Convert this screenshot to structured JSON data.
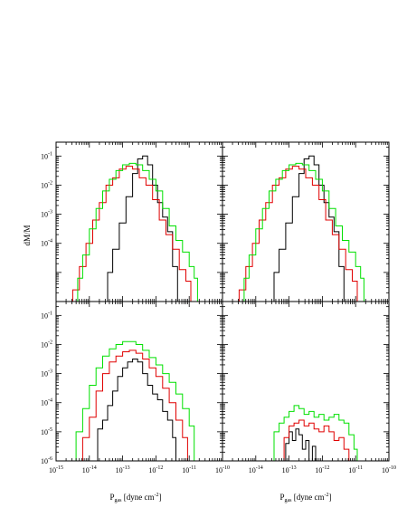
{
  "chart_data": {
    "type": "line",
    "layout": "2x2 panel grid of step histograms",
    "xscale": "log",
    "yscale": "log",
    "xlim": [
      1e-15,
      1e-10
    ],
    "ylabel": "dM/M",
    "xlabel_main": "P",
    "xlabel_sub": "gas",
    "xlabel_unit": "[dyne cm",
    "xlabel_exp": "-2",
    "xlabel_close": "]",
    "x_ticks_major": [
      -15,
      -14,
      -13,
      -12,
      -11,
      -10
    ],
    "x_tick_base": "10",
    "series_colors": [
      "#000000",
      "#e00000",
      "#00e000"
    ],
    "panels": [
      {
        "position": "top-left",
        "ylim": [
          1e-06,
          0.3
        ],
        "y_ticks_shown": [
          -4,
          -3,
          -2,
          -1
        ],
        "series": [
          {
            "color": "#000000",
            "points": [
              [
                -13.55,
                -6.5
              ],
              [
                -13.45,
                -5.0
              ],
              [
                -13.3,
                -4.2
              ],
              [
                -13.1,
                -3.3
              ],
              [
                -12.9,
                -2.4
              ],
              [
                -12.7,
                -1.6
              ],
              [
                -12.55,
                -1.1
              ],
              [
                -12.4,
                -1.0
              ],
              [
                -12.25,
                -1.3
              ],
              [
                -12.1,
                -2.0
              ],
              [
                -11.95,
                -2.6
              ],
              [
                -11.8,
                -3.1
              ],
              [
                -11.65,
                -3.6
              ],
              [
                -11.5,
                -4.8
              ],
              [
                -11.35,
                -6.5
              ]
            ]
          },
          {
            "color": "#e00000",
            "points": [
              [
                -14.65,
                -6.5
              ],
              [
                -14.5,
                -5.6
              ],
              [
                -14.3,
                -4.8
              ],
              [
                -14.1,
                -4.0
              ],
              [
                -13.9,
                -3.2
              ],
              [
                -13.7,
                -2.6
              ],
              [
                -13.5,
                -2.0
              ],
              [
                -13.3,
                -1.75
              ],
              [
                -13.1,
                -1.45
              ],
              [
                -12.9,
                -1.35
              ],
              [
                -12.7,
                -1.45
              ],
              [
                -12.5,
                -1.75
              ],
              [
                -12.3,
                -2.0
              ],
              [
                -12.1,
                -2.5
              ],
              [
                -11.9,
                -3.2
              ],
              [
                -11.7,
                -3.7
              ],
              [
                -11.5,
                -4.2
              ],
              [
                -11.3,
                -4.9
              ],
              [
                -11.1,
                -5.3
              ],
              [
                -10.95,
                -6.5
              ]
            ]
          },
          {
            "color": "#00e000",
            "points": [
              [
                -14.45,
                -6.5
              ],
              [
                -14.35,
                -5.2
              ],
              [
                -14.2,
                -4.4
              ],
              [
                -14.0,
                -3.5
              ],
              [
                -13.8,
                -2.8
              ],
              [
                -13.6,
                -2.2
              ],
              [
                -13.4,
                -1.8
              ],
              [
                -13.2,
                -1.5
              ],
              [
                -13.0,
                -1.3
              ],
              [
                -12.8,
                -1.25
              ],
              [
                -12.6,
                -1.3
              ],
              [
                -12.4,
                -1.5
              ],
              [
                -12.2,
                -1.8
              ],
              [
                -12.0,
                -2.2
              ],
              [
                -11.8,
                -2.8
              ],
              [
                -11.6,
                -3.4
              ],
              [
                -11.4,
                -3.9
              ],
              [
                -11.2,
                -4.3
              ],
              [
                -11.0,
                -4.8
              ],
              [
                -10.85,
                -5.2
              ],
              [
                -10.75,
                -6.5
              ]
            ]
          }
        ]
      },
      {
        "position": "top-right",
        "ylim": [
          1e-06,
          0.3
        ],
        "y_ticks_shown": [],
        "series": [
          {
            "color": "#000000",
            "points": [
              [
                -13.55,
                -6.5
              ],
              [
                -13.45,
                -5.0
              ],
              [
                -13.3,
                -4.2
              ],
              [
                -13.1,
                -3.3
              ],
              [
                -12.9,
                -2.4
              ],
              [
                -12.7,
                -1.6
              ],
              [
                -12.55,
                -1.1
              ],
              [
                -12.4,
                -1.0
              ],
              [
                -12.25,
                -1.3
              ],
              [
                -12.1,
                -2.0
              ],
              [
                -11.95,
                -2.6
              ],
              [
                -11.8,
                -3.1
              ],
              [
                -11.65,
                -3.6
              ],
              [
                -11.5,
                -4.8
              ],
              [
                -11.35,
                -6.5
              ]
            ]
          },
          {
            "color": "#e00000",
            "points": [
              [
                -14.65,
                -6.5
              ],
              [
                -14.5,
                -5.6
              ],
              [
                -14.3,
                -4.8
              ],
              [
                -14.1,
                -4.0
              ],
              [
                -13.9,
                -3.2
              ],
              [
                -13.7,
                -2.6
              ],
              [
                -13.5,
                -2.0
              ],
              [
                -13.3,
                -1.75
              ],
              [
                -13.1,
                -1.45
              ],
              [
                -12.9,
                -1.35
              ],
              [
                -12.7,
                -1.45
              ],
              [
                -12.5,
                -1.75
              ],
              [
                -12.3,
                -2.0
              ],
              [
                -12.1,
                -2.5
              ],
              [
                -11.9,
                -3.2
              ],
              [
                -11.7,
                -3.7
              ],
              [
                -11.5,
                -4.2
              ],
              [
                -11.3,
                -4.9
              ],
              [
                -11.1,
                -5.3
              ],
              [
                -10.95,
                -6.5
              ]
            ]
          },
          {
            "color": "#00e000",
            "points": [
              [
                -14.45,
                -6.5
              ],
              [
                -14.35,
                -5.2
              ],
              [
                -14.2,
                -4.4
              ],
              [
                -14.0,
                -3.5
              ],
              [
                -13.8,
                -2.8
              ],
              [
                -13.6,
                -2.2
              ],
              [
                -13.4,
                -1.8
              ],
              [
                -13.2,
                -1.5
              ],
              [
                -13.0,
                -1.3
              ],
              [
                -12.8,
                -1.25
              ],
              [
                -12.6,
                -1.3
              ],
              [
                -12.4,
                -1.5
              ],
              [
                -12.2,
                -1.8
              ],
              [
                -12.0,
                -2.2
              ],
              [
                -11.8,
                -2.8
              ],
              [
                -11.6,
                -3.4
              ],
              [
                -11.4,
                -3.9
              ],
              [
                -11.2,
                -4.3
              ],
              [
                -11.0,
                -4.8
              ],
              [
                -10.85,
                -5.2
              ],
              [
                -10.75,
                -6.5
              ]
            ]
          }
        ]
      },
      {
        "position": "bottom-left",
        "ylim": [
          1e-06,
          0.3
        ],
        "y_ticks_shown": [
          -6,
          -5,
          -4,
          -3,
          -2,
          -1
        ],
        "series": [
          {
            "color": "#000000",
            "points": [
              [
                -13.85,
                -6.0
              ],
              [
                -13.75,
                -4.9
              ],
              [
                -13.6,
                -4.6
              ],
              [
                -13.45,
                -4.1
              ],
              [
                -13.3,
                -3.6
              ],
              [
                -13.15,
                -3.1
              ],
              [
                -13.0,
                -2.8
              ],
              [
                -12.85,
                -2.6
              ],
              [
                -12.7,
                -2.5
              ],
              [
                -12.55,
                -2.6
              ],
              [
                -12.4,
                -3.0
              ],
              [
                -12.25,
                -3.4
              ],
              [
                -12.1,
                -3.7
              ],
              [
                -11.95,
                -3.9
              ],
              [
                -11.8,
                -4.3
              ],
              [
                -11.65,
                -4.6
              ],
              [
                -11.5,
                -5.2
              ],
              [
                -11.4,
                -6.0
              ]
            ]
          },
          {
            "color": "#e00000",
            "points": [
              [
                -14.35,
                -6.0
              ],
              [
                -14.2,
                -5.2
              ],
              [
                -14.0,
                -4.5
              ],
              [
                -13.8,
                -3.6
              ],
              [
                -13.6,
                -3.0
              ],
              [
                -13.4,
                -2.6
              ],
              [
                -13.2,
                -2.4
              ],
              [
                -13.0,
                -2.25
              ],
              [
                -12.8,
                -2.2
              ],
              [
                -12.6,
                -2.3
              ],
              [
                -12.4,
                -2.5
              ],
              [
                -12.2,
                -2.8
              ],
              [
                -12.0,
                -3.1
              ],
              [
                -11.8,
                -3.5
              ],
              [
                -11.6,
                -4.0
              ],
              [
                -11.4,
                -4.6
              ],
              [
                -11.2,
                -5.2
              ],
              [
                -11.05,
                -6.0
              ]
            ]
          },
          {
            "color": "#00e000",
            "points": [
              [
                -14.55,
                -6.0
              ],
              [
                -14.4,
                -5.0
              ],
              [
                -14.2,
                -4.2
              ],
              [
                -14.0,
                -3.4
              ],
              [
                -13.8,
                -2.8
              ],
              [
                -13.6,
                -2.4
              ],
              [
                -13.4,
                -2.15
              ],
              [
                -13.2,
                -2.0
              ],
              [
                -13.0,
                -1.9
              ],
              [
                -12.8,
                -1.9
              ],
              [
                -12.6,
                -2.0
              ],
              [
                -12.4,
                -2.2
              ],
              [
                -12.2,
                -2.45
              ],
              [
                -12.0,
                -2.7
              ],
              [
                -11.8,
                -3.0
              ],
              [
                -11.6,
                -3.3
              ],
              [
                -11.4,
                -3.7
              ],
              [
                -11.2,
                -4.2
              ],
              [
                -11.0,
                -4.8
              ],
              [
                -10.85,
                -6.0
              ]
            ]
          }
        ]
      },
      {
        "position": "bottom-right",
        "ylim": [
          1e-06,
          0.3
        ],
        "y_ticks_shown": [],
        "series": [
          {
            "color": "#000000",
            "points": [
              [
                -13.2,
                -6.0
              ],
              [
                -13.1,
                -5.4
              ],
              [
                -13.0,
                -5.0
              ],
              [
                -12.9,
                -5.3
              ],
              [
                -12.8,
                -4.9
              ],
              [
                -12.7,
                -5.1
              ],
              [
                -12.6,
                -5.6
              ],
              [
                -12.5,
                -5.3
              ],
              [
                -12.4,
                -6.0
              ],
              [
                -12.3,
                -5.5
              ],
              [
                -12.2,
                -6.0
              ]
            ]
          },
          {
            "color": "#e00000",
            "points": [
              [
                -13.3,
                -6.0
              ],
              [
                -13.15,
                -5.2
              ],
              [
                -13.0,
                -4.8
              ],
              [
                -12.85,
                -4.7
              ],
              [
                -12.7,
                -4.6
              ],
              [
                -12.55,
                -4.8
              ],
              [
                -12.4,
                -4.7
              ],
              [
                -12.25,
                -4.9
              ],
              [
                -12.1,
                -5.0
              ],
              [
                -11.95,
                -4.8
              ],
              [
                -11.8,
                -5.0
              ],
              [
                -11.65,
                -5.3
              ],
              [
                -11.5,
                -5.2
              ],
              [
                -11.35,
                -5.6
              ],
              [
                -11.2,
                -6.0
              ]
            ]
          },
          {
            "color": "#00e000",
            "points": [
              [
                -13.55,
                -6.0
              ],
              [
                -13.45,
                -5.0
              ],
              [
                -13.3,
                -4.7
              ],
              [
                -13.15,
                -4.5
              ],
              [
                -13.0,
                -4.3
              ],
              [
                -12.85,
                -4.1
              ],
              [
                -12.7,
                -4.2
              ],
              [
                -12.55,
                -4.4
              ],
              [
                -12.4,
                -4.3
              ],
              [
                -12.25,
                -4.5
              ],
              [
                -12.1,
                -4.4
              ],
              [
                -11.95,
                -4.6
              ],
              [
                -11.8,
                -4.5
              ],
              [
                -11.65,
                -4.4
              ],
              [
                -11.5,
                -4.6
              ],
              [
                -11.35,
                -4.7
              ],
              [
                -11.2,
                -5.1
              ],
              [
                -11.05,
                -5.6
              ],
              [
                -10.95,
                -6.0
              ]
            ]
          }
        ]
      }
    ]
  }
}
